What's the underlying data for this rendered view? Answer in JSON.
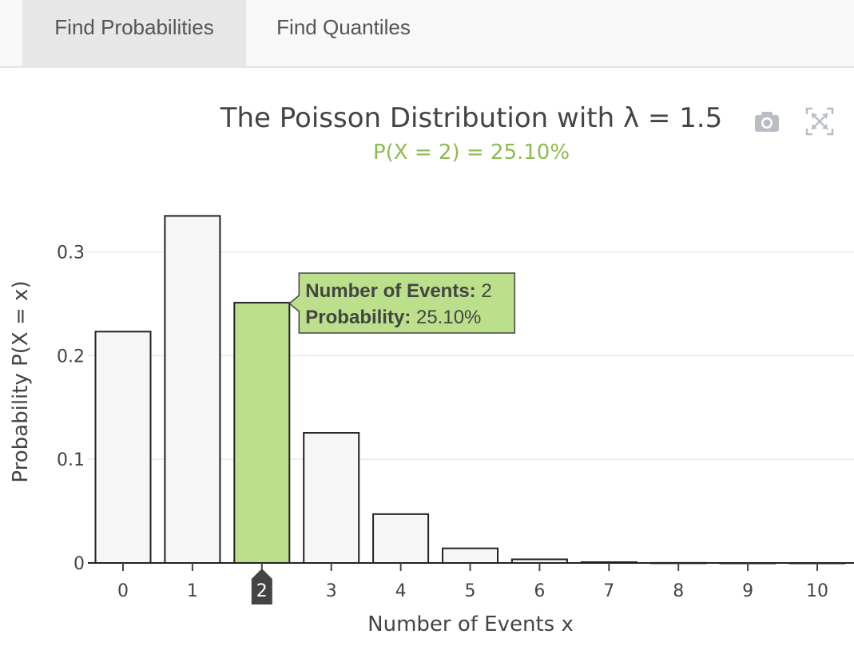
{
  "tabs": [
    {
      "label": "Find Probabilities",
      "active": true
    },
    {
      "label": "Find Quantiles",
      "active": false
    }
  ],
  "colors": {
    "highlight": "#bcdf8b",
    "highlight_text": "#8cbb4f",
    "bar_fill": "#f6f6f6",
    "bar_stroke": "#222222",
    "grid": "#eeeeee",
    "hover_label_bg": "#444444"
  },
  "toolbar": {
    "icons": [
      "camera-icon",
      "autoscale-icon"
    ]
  },
  "chart_data": {
    "type": "bar",
    "title": "The Poisson Distribution with λ = 1.5",
    "subtitle": "P(X = 2) = 25.10%",
    "xlabel": "Number of Events x",
    "ylabel": "Probability P(X = x)",
    "x": [
      0,
      1,
      2,
      3,
      4,
      5,
      6,
      7,
      8,
      9,
      10
    ],
    "values": [
      0.2231,
      0.3347,
      0.251,
      0.1255,
      0.0471,
      0.0141,
      0.0035,
      0.0008,
      0.0001,
      0.0,
      0.0
    ],
    "ylim": [
      0,
      0.335
    ],
    "yticks": [
      0,
      0.1,
      0.2,
      0.3
    ],
    "ytick_labels": [
      "0",
      "0.1",
      "0.2",
      "0.3"
    ],
    "xtick_labels": [
      "0",
      "1",
      "2",
      "3",
      "4",
      "5",
      "6",
      "7",
      "8",
      "9",
      "10"
    ],
    "highlight_x": 2,
    "grid": true,
    "tooltip": {
      "events_label": "Number of Events:",
      "events_value": "2",
      "prob_label": "Probability:",
      "prob_value": "25.10%"
    }
  }
}
